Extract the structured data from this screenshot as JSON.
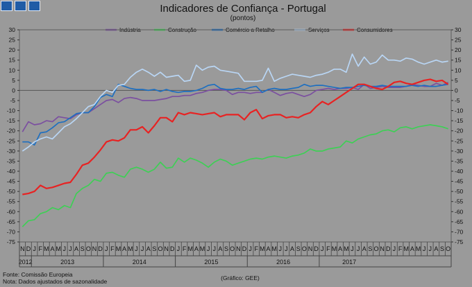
{
  "chart_data": {
    "type": "line",
    "title": "Indicadores de Confiança - Portugal",
    "subtitle": "(pontos)",
    "ylim": [
      -75,
      30
    ],
    "y_ticks": [
      30,
      25,
      20,
      15,
      10,
      5,
      0,
      -5,
      -10,
      -15,
      -20,
      -25,
      -30,
      -35,
      -40,
      -45,
      -50,
      -55,
      -60,
      -65,
      -70,
      -75
    ],
    "month_labels": [
      "N",
      "D",
      "J",
      "F",
      "M",
      "A",
      "M",
      "J",
      "J",
      "A",
      "S",
      "O",
      "N",
      "D",
      "J",
      "F",
      "M",
      "A",
      "M",
      "J",
      "J",
      "A",
      "S",
      "O",
      "N",
      "D",
      "J",
      "F",
      "M",
      "A",
      "M",
      "J",
      "J",
      "A",
      "S",
      "O",
      "N",
      "D",
      "J",
      "F",
      "M",
      "A",
      "M",
      "J",
      "J",
      "A",
      "S",
      "O",
      "N",
      "D",
      "J",
      "F",
      "M",
      "A",
      "M",
      "J",
      "J",
      "A",
      "S",
      "O",
      "N",
      "D",
      "J",
      "F",
      "M",
      "A",
      "M",
      "J",
      "J",
      "A",
      "S",
      "O"
    ],
    "year_labels": [
      {
        "label": "2012",
        "start": 0,
        "end": 1
      },
      {
        "label": "2013",
        "start": 2,
        "end": 13
      },
      {
        "label": "2014",
        "start": 14,
        "end": 25
      },
      {
        "label": "2015",
        "start": 26,
        "end": 37
      },
      {
        "label": "2016",
        "start": 38,
        "end": 49
      },
      {
        "label": "2017",
        "start": 50,
        "end": 59
      }
    ],
    "legend": [
      "Indústria",
      "Construção",
      "Comércio a Retalho",
      "Serviços",
      "Consumidores"
    ],
    "series": [
      {
        "name": "Indústria",
        "color": "#7b4fa0",
        "values": [
          -20.5,
          -15.5,
          -17,
          -16.5,
          -15,
          -15.5,
          -13,
          -13.5,
          -14,
          -12,
          -11,
          -11,
          -9,
          -7,
          -5,
          -4.5,
          -6,
          -4,
          -3.5,
          -4,
          -5,
          -5,
          -5,
          -4.5,
          -4,
          -3,
          -3,
          -2.5,
          -2.5,
          -1.5,
          -1,
          0,
          0.5,
          0.5,
          0,
          -2,
          -1,
          -1,
          -1.5,
          -1,
          -1,
          0.5,
          -1,
          -2.5,
          -1.5,
          -1,
          -2,
          -3,
          -2,
          0,
          0.5,
          1,
          0.5,
          1,
          1,
          1.5,
          0.5,
          3,
          1,
          1.5,
          2,
          1.5,
          1.5,
          1.5,
          2,
          3,
          2.5,
          2,
          2,
          3.5,
          2.5,
          4
        ]
      },
      {
        "name": "Construção",
        "color": "#3ecf55",
        "values": [
          -67.5,
          -64.5,
          -64,
          -61,
          -60,
          -58,
          -59,
          -57,
          -58,
          -51,
          -48.5,
          -47,
          -44,
          -45,
          -41,
          -40.5,
          -42,
          -43,
          -39,
          -38,
          -39,
          -40.5,
          -39,
          -35.5,
          -38.5,
          -38,
          -33.5,
          -35.5,
          -33.5,
          -34.5,
          -36,
          -38,
          -35.5,
          -34,
          -35,
          -37,
          -36,
          -35,
          -34,
          -33.5,
          -34,
          -33,
          -32.5,
          -33,
          -33.5,
          -32.5,
          -32,
          -31,
          -29,
          -30,
          -30,
          -29,
          -28.5,
          -28,
          -25,
          -26,
          -24,
          -23,
          -22,
          -21.5,
          -20,
          -19.5,
          -20.5,
          -18.5,
          -18,
          -19,
          -18,
          -17.5,
          -17,
          -17.5,
          -18,
          -19
        ]
      },
      {
        "name": "Comércio a Retalho",
        "color": "#1e6fc0",
        "values": [
          -25.5,
          -25.5,
          -27,
          -21,
          -20.5,
          -18.5,
          -16,
          -15.5,
          -13.5,
          -11.5,
          -11,
          -11,
          -8,
          -3.5,
          -2,
          -3,
          3,
          2,
          1,
          0.5,
          0.5,
          0,
          0.5,
          -0.5,
          0.5,
          -0.5,
          -1,
          -0.5,
          -0.5,
          0,
          1,
          2.5,
          3,
          1,
          0.5,
          0.5,
          1,
          0.5,
          1.5,
          2,
          -1,
          0.5,
          1,
          0.5,
          0.5,
          1,
          1.5,
          3,
          2,
          2.5,
          2.5,
          2,
          1.5,
          1,
          1.5,
          1.5,
          2,
          2.5,
          2,
          2,
          2.5,
          2,
          2,
          2,
          2,
          2.5,
          2,
          2.5,
          2,
          2,
          2.5,
          3
        ]
      },
      {
        "name": "Serviços",
        "color": "#b9d6f5",
        "values": [
          -30,
          -28,
          -25.5,
          -24,
          -23,
          -24,
          -21,
          -18,
          -16.5,
          -14,
          -11,
          -8,
          -7,
          -3,
          0,
          -1,
          2.5,
          3,
          6.5,
          9,
          10.5,
          9,
          7,
          9,
          6.5,
          7,
          7.5,
          4.5,
          5,
          12.5,
          10,
          11.5,
          12,
          10,
          9.5,
          9,
          8.5,
          4.5,
          4.5,
          4.5,
          5,
          11,
          4.5,
          6,
          7,
          8,
          7.5,
          7,
          6.5,
          7.5,
          8,
          9,
          10.5,
          10.5,
          9,
          18,
          12,
          16.5,
          13,
          14,
          17.5,
          15,
          15,
          14.5,
          16,
          15.5,
          14,
          13,
          14,
          15,
          14,
          14.5
        ]
      },
      {
        "name": "Consumidores",
        "color": "#e82222",
        "values": [
          -51.5,
          -51,
          -50,
          -47,
          -48.5,
          -48,
          -47,
          -46,
          -45.5,
          -41.5,
          -37,
          -36,
          -33,
          -29.5,
          -25.5,
          -24.5,
          -25,
          -23.5,
          -19.5,
          -19.5,
          -18,
          -21,
          -17.5,
          -13.5,
          -13.5,
          -15.5,
          -11,
          -12,
          -11,
          -11.5,
          -12,
          -11.5,
          -11,
          -13,
          -12,
          -12,
          -12,
          -14.5,
          -11,
          -9.5,
          -14,
          -12.5,
          -12,
          -12,
          -13.5,
          -13,
          -13.5,
          -12,
          -11,
          -8,
          -5.5,
          -7,
          -5,
          -3,
          -1,
          1,
          3,
          3,
          2,
          1,
          0.5,
          2,
          4,
          4.5,
          3.5,
          3,
          4,
          5,
          5.5,
          4.5,
          5,
          3
        ]
      }
    ]
  },
  "header": {
    "title": "Indicadores de Confiança - Portugal",
    "subtitle": "(pontos)"
  },
  "footer": {
    "source": "Fonte: Comissão Europeia",
    "note": "Nota: Dados ajustados de sazonalidade",
    "credit": "(Gráfico: GEE)"
  }
}
